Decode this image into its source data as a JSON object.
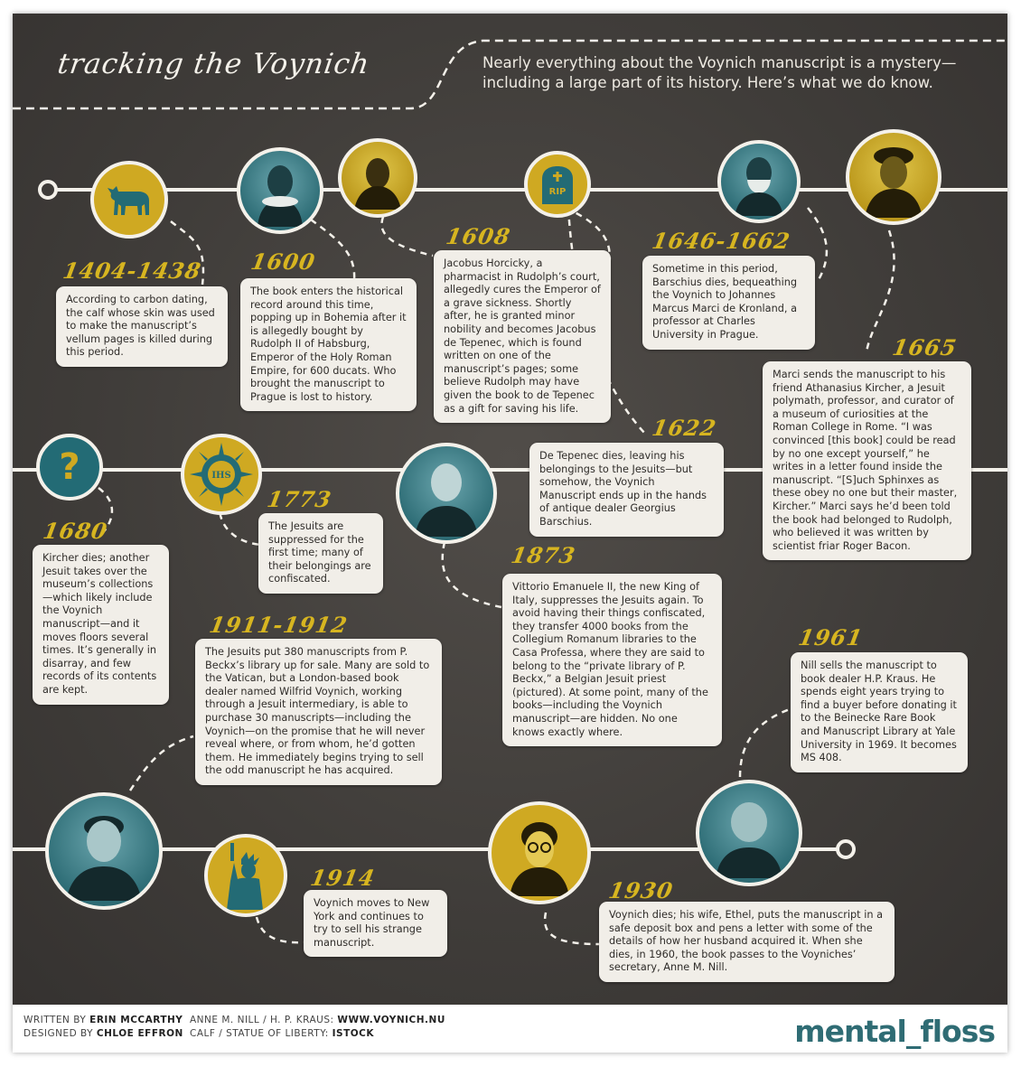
{
  "header": {
    "title": "tracking the Voynich",
    "intro": "Nearly everything about the Voynich manuscript is a mystery—including a large part of its history. Here’s what we do know."
  },
  "events": [
    {
      "year": "1404-1438",
      "text": "According to carbon dating, the calf whose skin was used to make the manuscript’s vellum pages is killed during this period."
    },
    {
      "year": "1600",
      "text": "The book enters the historical record around this time, popping up in Bohemia after it is allegedly bought by Rudolph II of Habsburg, Emperor of the Holy Roman Empire, for 600 ducats. Who brought the manuscript to Prague is lost to history."
    },
    {
      "year": "1608",
      "text": "Jacobus Horcicky, a pharmacist in Rudolph’s court, allegedly cures the Emperor of a grave sickness. Shortly after, he is granted minor nobility and becomes Jacobus de Tepenec, which is found written on one of the manuscript’s pages; some believe Rudolph may have given the book to de Tepenec as a gift for saving his life."
    },
    {
      "year": "1622",
      "text": "De Tepenec dies, leaving his belongings to the Jesuits—but somehow, the Voynich Manuscript ends up in the hands of antique dealer Georgius Barschius."
    },
    {
      "year": "1646-1662",
      "text": "Sometime in this period, Barschius dies, bequeathing the Voynich to Johannes Marcus Marci de Kronland, a professor at Charles University in Prague."
    },
    {
      "year": "1665",
      "text": "Marci sends the manuscript to his friend Athanasius Kircher, a Jesuit polymath, professor, and curator of a museum of curiosities at the Roman College in Rome. “I was convinced [this book] could be read by no one except yourself,” he writes in a letter found inside the manuscript. “[S]uch Sphinxes as these obey no one but their master, Kircher.” Marci says he’d been told the book had belonged to Rudolph, who believed it was written by scientist friar Roger Bacon."
    },
    {
      "year": "1680",
      "text": "Kircher dies; another Jesuit takes over the museum’s collections—which likely include the Voynich manuscript—and it moves floors several times. It’s generally in disarray, and few records of its contents are kept."
    },
    {
      "year": "1773",
      "text": "The Jesuits are suppressed for the first time; many of their belongings are confiscated."
    },
    {
      "year": "1873",
      "text": "Vittorio Emanuele II, the new King of Italy, suppresses the Jesuits again. To avoid having their things confiscated, they transfer 4000 books from the Collegium Romanum libraries to the Casa Professa, where they are said to belong to the “private library of P. Beckx,” a Belgian Jesuit priest (pictured). At some point, many of the books—including the Voynich manuscript—are hidden. No one knows exactly where."
    },
    {
      "year": "1911-1912",
      "text": "The Jesuits put 380 manuscripts from P. Beckx’s library up for sale. Many are sold to the Vatican, but a London-based book dealer named Wilfrid Voynich, working through a Jesuit intermediary, is able to purchase 30 manuscripts—including the Voynich—on the promise that he will never reveal where, or from whom, he’d gotten them. He immediately begins trying to sell the odd manuscript he has acquired."
    },
    {
      "year": "1914",
      "text": "Voynich moves to New York and continues to try to sell his strange manuscript."
    },
    {
      "year": "1930",
      "text": "Voynich dies; his wife, Ethel, puts the manuscript in a safe deposit box and pens a letter with some of the details of how her husband acquired it. When she dies, in 1960, the book passes to the Voyniches’ secretary, Anne M. Nill."
    },
    {
      "year": "1961",
      "text": "Nill sells the manuscript to book dealer H.P. Kraus. He spends eight years trying to find a buyer before donating it to the Beinecke Rare Book and Manuscript Library at Yale University in 1969. It becomes MS 408."
    }
  ],
  "icons": {
    "rip_label": "RIP",
    "question_label": "?",
    "ihs_label": "IHS"
  },
  "footer": {
    "written_by_label": "WRITTEN BY",
    "written_by": "ERIN MCCARTHY",
    "designed_by_label": "DESIGNED BY",
    "designed_by": "CHLOE EFFRON",
    "credit1_label": "ANNE M. NILL / H. P. KRAUS:",
    "credit1": "WWW.VOYNICH.NU",
    "credit2_label": "CALF / STATUE OF LIBERTY:",
    "credit2": "ISTOCK",
    "logo_a": "mental",
    "logo_b": "_floss"
  },
  "colors": {
    "gold": "#d7b520",
    "teal": "#236b75",
    "cream": "#f1eee8",
    "board": "#3f3c39"
  }
}
